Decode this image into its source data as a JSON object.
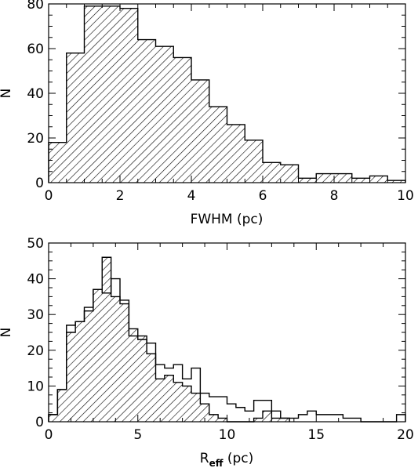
{
  "chart_data": [
    {
      "type": "histogram",
      "xlabel": "FWHM (pc)",
      "ylabel": "N",
      "xlim": [
        0,
        10
      ],
      "ylim": [
        0,
        80
      ],
      "xticks": [
        0,
        2,
        4,
        6,
        8,
        10
      ],
      "yticks": [
        0,
        20,
        40,
        60,
        80
      ],
      "series": [
        {
          "fill": "hatched",
          "bin_width": 0.5,
          "bin_starts": [
            0,
            0.5,
            1.0,
            1.5,
            2.0,
            2.5,
            3.0,
            3.5,
            4.0,
            4.5,
            5.0,
            5.5,
            6.0,
            6.5,
            7.0,
            7.5,
            8.0,
            8.5,
            9.0,
            9.5
          ],
          "values": [
            18,
            58,
            79,
            79,
            78,
            64,
            61,
            56,
            46,
            34,
            26,
            19,
            9,
            8,
            2,
            4,
            4,
            2,
            3,
            1
          ]
        }
      ]
    },
    {
      "type": "histogram",
      "xlabel": "R",
      "xlabel_sub": "eff",
      "xlabel_suffix": " (pc)",
      "ylabel": "N",
      "xlim": [
        0,
        20
      ],
      "ylim": [
        0,
        50
      ],
      "xticks": [
        0,
        5,
        10,
        15,
        20
      ],
      "yticks": [
        0,
        10,
        20,
        30,
        40,
        50
      ],
      "series": [
        {
          "fill": "hatched",
          "bin_width": 0.5,
          "bin_starts": [
            0,
            0.5,
            1.0,
            1.5,
            2.0,
            2.5,
            3.0,
            3.5,
            4.0,
            4.5,
            5.0,
            5.5,
            6.0,
            6.5,
            7.0,
            7.5,
            8.0,
            8.5,
            9.0,
            9.5,
            10.0,
            10.5,
            11.0,
            11.5,
            12.0,
            12.5,
            13.0
          ],
          "values": [
            2,
            9,
            25,
            28,
            31,
            37,
            46,
            35,
            33,
            26,
            24,
            19,
            12,
            13,
            11,
            10,
            8,
            5,
            2,
            1,
            0,
            0,
            0,
            1,
            3,
            1,
            1
          ]
        },
        {
          "fill": "none",
          "bin_width": 0.5,
          "bin_starts": [
            0,
            0.5,
            1.0,
            1.5,
            2.0,
            2.5,
            3.0,
            3.5,
            4.0,
            4.5,
            5.0,
            5.5,
            6.0,
            6.5,
            7.0,
            7.5,
            8.0,
            8.5,
            9.0,
            9.5,
            10.0,
            10.5,
            11.0,
            11.5,
            12.0,
            12.5,
            13.0,
            13.5,
            14.0,
            14.5,
            15.0,
            15.5,
            16.0,
            16.5,
            17.0,
            17.5,
            18.0,
            18.5,
            19.0,
            19.5
          ],
          "values": [
            2,
            9,
            27,
            28,
            32,
            37,
            36,
            40,
            34,
            24,
            23,
            22,
            16,
            15,
            16,
            12,
            15,
            8,
            7,
            7,
            5,
            4,
            3,
            6,
            6,
            3,
            1,
            1,
            2,
            3,
            2,
            2,
            2,
            1,
            1,
            0,
            0,
            0,
            0,
            2
          ]
        }
      ]
    }
  ]
}
